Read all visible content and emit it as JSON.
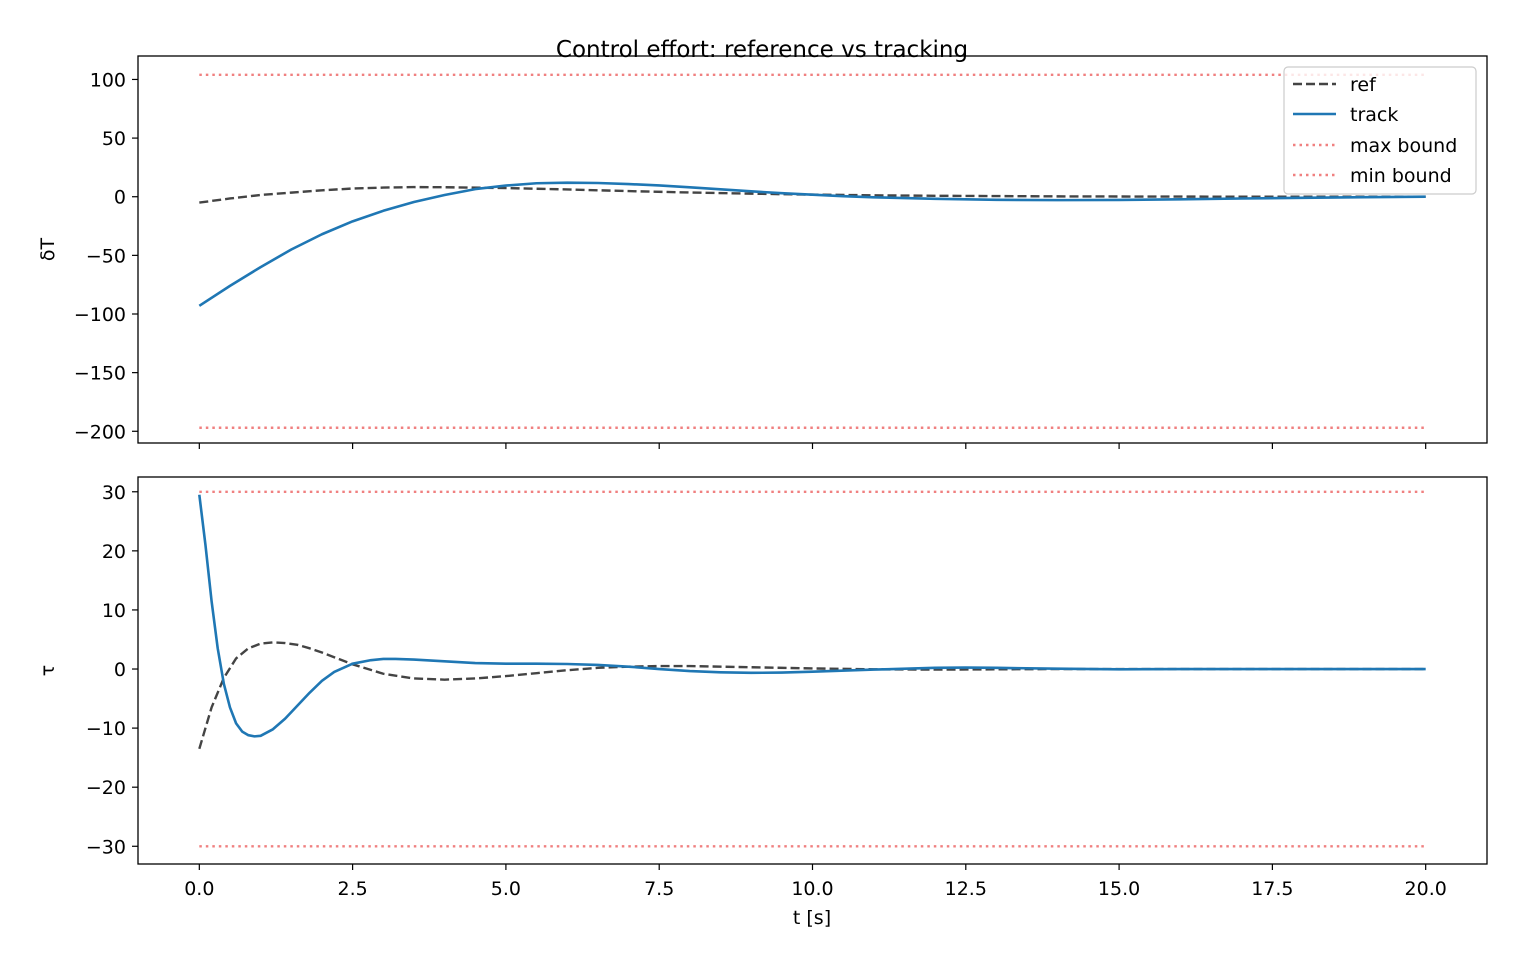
{
  "figure": {
    "title": "Control effort: reference vs tracking",
    "xlabel": "t [s]"
  },
  "legend": {
    "placement": "upper-right",
    "items": [
      {
        "label": "ref",
        "color": "#444444",
        "style": "dashed"
      },
      {
        "label": "track",
        "color": "#1f77b4",
        "style": "solid"
      },
      {
        "label": "max bound",
        "color": "#f08080",
        "style": "dotted"
      },
      {
        "label": "min bound",
        "color": "#f08080",
        "style": "dotted"
      }
    ]
  },
  "chart_data": [
    {
      "type": "line",
      "ylabel": "δT",
      "xlim": [
        -1.0,
        21.0
      ],
      "ylim": [
        -210,
        120
      ],
      "xticks": [
        0.0,
        2.5,
        5.0,
        7.5,
        10.0,
        12.5,
        15.0,
        17.5,
        20.0
      ],
      "yticks": [
        100,
        50,
        0,
        -50,
        -100,
        -150,
        -200
      ],
      "ytick_labels": [
        "100",
        "50",
        "0",
        "−50",
        "−100",
        "−150",
        "−200"
      ],
      "show_xtick_labels": false,
      "grid": false,
      "bounds": {
        "max": 104,
        "min": -197
      },
      "series": [
        {
          "name": "ref",
          "x": [
            0,
            0.5,
            1,
            1.5,
            2,
            2.5,
            3,
            3.5,
            4,
            5,
            6,
            7,
            8,
            9,
            10,
            11,
            12,
            14,
            16,
            18,
            20
          ],
          "y": [
            -5,
            -1.5,
            1.5,
            3.5,
            5.5,
            7,
            7.8,
            8.2,
            8.1,
            7.4,
            6.2,
            4.8,
            3.6,
            2.6,
            1.8,
            1.2,
            0.8,
            0.3,
            0.1,
            0,
            0
          ]
        },
        {
          "name": "track",
          "x": [
            0,
            0.5,
            1,
            1.5,
            2,
            2.5,
            3,
            3.5,
            4,
            4.5,
            5,
            5.5,
            6,
            6.5,
            7,
            7.5,
            8,
            8.5,
            9,
            9.5,
            10,
            10.5,
            11,
            12,
            13,
            14,
            15,
            16,
            17,
            18,
            19,
            20
          ],
          "y": [
            -93,
            -76,
            -60,
            -45,
            -32,
            -21,
            -12,
            -4.5,
            1.5,
            6.5,
            9.5,
            11.5,
            12,
            11.7,
            10.8,
            9.6,
            8,
            6.3,
            4.6,
            3,
            1.7,
            0.5,
            -0.5,
            -1.8,
            -2.6,
            -2.9,
            -2.7,
            -2.2,
            -1.5,
            -0.9,
            -0.4,
            0
          ]
        }
      ]
    },
    {
      "type": "line",
      "ylabel": "τ",
      "xlim": [
        -1.0,
        21.0
      ],
      "ylim": [
        -33,
        32.5
      ],
      "xticks": [
        0.0,
        2.5,
        5.0,
        7.5,
        10.0,
        12.5,
        15.0,
        17.5,
        20.0
      ],
      "xtick_labels": [
        "0.0",
        "2.5",
        "5.0",
        "7.5",
        "10.0",
        "12.5",
        "15.0",
        "17.5",
        "20.0"
      ],
      "yticks": [
        30,
        20,
        10,
        0,
        -10,
        -20,
        -30
      ],
      "ytick_labels": [
        "30",
        "20",
        "10",
        "0",
        "−10",
        "−20",
        "−30"
      ],
      "show_xtick_labels": true,
      "grid": false,
      "bounds": {
        "max": 30,
        "min": -30
      },
      "series": [
        {
          "name": "ref",
          "x": [
            0,
            0.2,
            0.4,
            0.6,
            0.8,
            1.0,
            1.2,
            1.4,
            1.6,
            1.8,
            2.0,
            2.5,
            3.0,
            3.5,
            4.0,
            4.5,
            5.0,
            5.5,
            6.0,
            6.5,
            7.0,
            7.5,
            8,
            9,
            10,
            11,
            12,
            14,
            16,
            18,
            20
          ],
          "y": [
            -13.5,
            -6.5,
            -1.5,
            1.8,
            3.5,
            4.3,
            4.5,
            4.4,
            4.1,
            3.5,
            2.8,
            0.8,
            -0.8,
            -1.6,
            -1.8,
            -1.6,
            -1.2,
            -0.7,
            -0.2,
            0.2,
            0.4,
            0.5,
            0.5,
            0.3,
            0.1,
            -0.05,
            -0.1,
            0,
            0,
            0,
            0
          ]
        },
        {
          "name": "track",
          "x": [
            0,
            0.1,
            0.2,
            0.3,
            0.4,
            0.5,
            0.6,
            0.7,
            0.8,
            0.9,
            1.0,
            1.2,
            1.4,
            1.6,
            1.8,
            2.0,
            2.2,
            2.5,
            2.8,
            3.0,
            3.2,
            3.5,
            4.0,
            4.5,
            5.0,
            5.5,
            6.0,
            6.5,
            7.0,
            7.5,
            8.0,
            8.5,
            9.0,
            9.5,
            10,
            11,
            12,
            12.5,
            13,
            14,
            15,
            16,
            18,
            20
          ],
          "y": [
            29.5,
            21,
            11.5,
            3.5,
            -2.5,
            -6.5,
            -9.2,
            -10.6,
            -11.2,
            -11.4,
            -11.3,
            -10.2,
            -8.4,
            -6.2,
            -4.0,
            -2.0,
            -0.5,
            0.9,
            1.5,
            1.7,
            1.7,
            1.6,
            1.3,
            1.0,
            0.9,
            0.9,
            0.85,
            0.7,
            0.4,
            0.0,
            -0.35,
            -0.55,
            -0.65,
            -0.6,
            -0.45,
            -0.1,
            0.2,
            0.25,
            0.2,
            0.05,
            -0.05,
            0,
            0,
            0
          ]
        }
      ]
    }
  ]
}
